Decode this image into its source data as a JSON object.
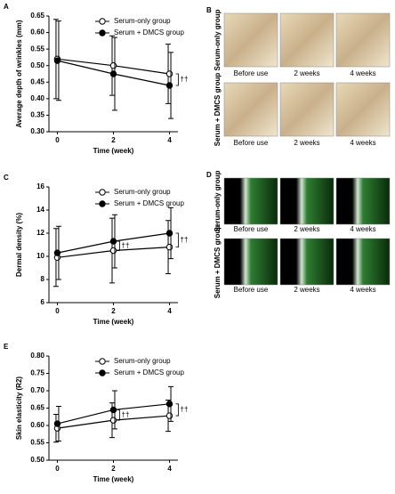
{
  "chart_data": [
    {
      "type": "line",
      "letter": "A",
      "ylabel": "Average depth of wrinkles (mm)",
      "xlabel": "Time (week)",
      "x": [
        0,
        2,
        4
      ],
      "xlim": [
        -0.3,
        4.3
      ],
      "xticks": [
        0,
        2,
        4
      ],
      "ylim": [
        0.3,
        0.65
      ],
      "yticks": [
        {
          "value": 0.3,
          "label": "0.30"
        },
        0.35,
        {
          "value": 0.4,
          "label": "0.40"
        },
        0.45,
        {
          "value": 0.5,
          "label": "0.50"
        },
        0.55,
        {
          "value": 0.6,
          "label": "0.60"
        },
        0.65
      ],
      "series": [
        {
          "name": "Serum-only group",
          "color": "#000000",
          "marker": "open",
          "values": [
            0.52,
            0.5,
            0.475
          ],
          "errors": [
            0.12,
            0.09,
            0.09
          ]
        },
        {
          "name": "Serum + DMCS group",
          "color": "#000000",
          "marker": "filled",
          "values": [
            0.515,
            0.475,
            0.44
          ],
          "errors": [
            0.12,
            0.11,
            0.1
          ]
        }
      ],
      "annotations": [
        "††"
      ]
    },
    {
      "type": "line",
      "letter": "C",
      "ylabel": "Dermal density (%)",
      "xlabel": "Time (week)",
      "x": [
        0,
        2,
        4
      ],
      "xlim": [
        -0.3,
        4.3
      ],
      "xticks": [
        0,
        2,
        4
      ],
      "ylim": [
        6,
        16
      ],
      "yticks": [
        6,
        8,
        10,
        12,
        14,
        16
      ],
      "series": [
        {
          "name": "Serum-only group",
          "color": "#000000",
          "marker": "open",
          "values": [
            9.9,
            10.5,
            10.8
          ],
          "errors": [
            2.5,
            2.8,
            2.3
          ]
        },
        {
          "name": "Serum + DMCS group",
          "color": "#000000",
          "marker": "filled",
          "values": [
            10.3,
            11.3,
            12.0
          ],
          "errors": [
            2.3,
            2.3,
            2.2
          ]
        }
      ],
      "annotations": [
        "††",
        "††"
      ]
    },
    {
      "type": "line",
      "letter": "E",
      "ylabel": "Skin elasticity (R2)",
      "xlabel": "Time (week)",
      "x": [
        0,
        2,
        4
      ],
      "xlim": [
        -0.3,
        4.3
      ],
      "xticks": [
        0,
        2,
        4
      ],
      "ylim": [
        0.5,
        0.8
      ],
      "yticks": [
        {
          "value": 0.5,
          "label": "0.50"
        },
        0.55,
        {
          "value": 0.6,
          "label": "0.60"
        },
        0.65,
        {
          "value": 0.7,
          "label": "0.70"
        },
        0.75,
        {
          "value": 0.8,
          "label": "0.80"
        }
      ],
      "series": [
        {
          "name": "Serum-only group",
          "color": "#000000",
          "marker": "open",
          "values": [
            0.592,
            0.615,
            0.628
          ],
          "errors": [
            0.04,
            0.05,
            0.045
          ]
        },
        {
          "name": "Serum + DMCS group",
          "color": "#000000",
          "marker": "filled",
          "values": [
            0.605,
            0.645,
            0.662
          ],
          "errors": [
            0.05,
            0.055,
            0.05
          ]
        }
      ],
      "annotations": [
        "††",
        "††"
      ]
    }
  ],
  "image_panels": [
    {
      "letter": "B",
      "rows": [
        {
          "label": "Serum-only group",
          "captions": [
            "Before use",
            "2 weeks",
            "4 weeks"
          ]
        },
        {
          "label": "Serum + DMCS group",
          "captions": [
            "Before use",
            "2 weeks",
            "4 weeks"
          ]
        }
      ]
    },
    {
      "letter": "D",
      "rows": [
        {
          "label": "Serum-only group",
          "captions": [
            "Before use",
            "2 weeks",
            "4 weeks"
          ]
        },
        {
          "label": "Serum + DMCS group",
          "captions": [
            "Before use",
            "2 weeks",
            "4 weeks"
          ]
        }
      ]
    }
  ]
}
